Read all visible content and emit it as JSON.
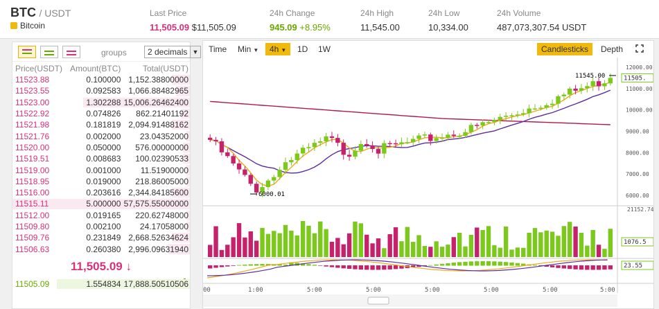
{
  "ticker": {
    "base": "BTC",
    "quote": "/ USDT",
    "coin_name": "Bitcoin",
    "last_price_label": "Last Price",
    "last_price": "11,505.09",
    "last_price_usd": "$11,505.09",
    "change_label": "24h Change",
    "change_value": "945.09",
    "change_pct": "+8.95%",
    "high_label": "24h High",
    "high_value": "11,545.00",
    "low_label": "24h Low",
    "low_value": "10,334.00",
    "volume_label": "24h Volume",
    "volume_value": "487,073,307.54 USDT"
  },
  "orderbook": {
    "groups_label": "groups",
    "decimals": "2 decimals",
    "headers": [
      "Price(USDT)",
      "Amount(BTC)",
      "Total(USDT)"
    ],
    "asks": [
      {
        "price": "11523.88",
        "amount": "0.100000",
        "total": "1,152.38800000",
        "depth": 0.1
      },
      {
        "price": "11523.55",
        "amount": "0.092583",
        "total": "1,066.88482965",
        "depth": 0.08
      },
      {
        "price": "11523.00",
        "amount": "1.302288",
        "total": "15,006.26462400",
        "depth": 0.6
      },
      {
        "price": "11522.92",
        "amount": "0.074826",
        "total": "862.21401192",
        "depth": 0.05
      },
      {
        "price": "11521.98",
        "amount": "0.181819",
        "total": "2,094.91488162",
        "depth": 0.1
      },
      {
        "price": "11521.76",
        "amount": "0.002000",
        "total": "23.04352000",
        "depth": 0.02
      },
      {
        "price": "11520.00",
        "amount": "0.050000",
        "total": "576.00000000",
        "depth": 0.04
      },
      {
        "price": "11519.51",
        "amount": "0.008683",
        "total": "100.02390533",
        "depth": 0.04
      },
      {
        "price": "11519.00",
        "amount": "0.001000",
        "total": "11.51900000",
        "depth": 0.02
      },
      {
        "price": "11518.95",
        "amount": "0.019000",
        "total": "218.86005000",
        "depth": 0.02
      },
      {
        "price": "11516.00",
        "amount": "0.203616",
        "total": "2,344.84185600",
        "depth": 0.1
      },
      {
        "price": "11515.11",
        "amount": "5.000000",
        "total": "57,575.55000000",
        "depth": 1.0
      },
      {
        "price": "11512.00",
        "amount": "0.019165",
        "total": "220.62748000",
        "depth": 0.02
      },
      {
        "price": "11509.80",
        "amount": "0.002100",
        "total": "24.17058000",
        "depth": 0.02
      },
      {
        "price": "11509.76",
        "amount": "0.231849",
        "total": "2,668.52634624",
        "depth": 0.1
      },
      {
        "price": "11506.63",
        "amount": "0.260380",
        "total": "2,996.09631940",
        "depth": 0.12
      }
    ],
    "last_price": "11,505.09 ↓",
    "bids": [
      {
        "price": "11505.09",
        "amount": "1.554834",
        "total": "17,888.50510506",
        "depth": 0.75
      }
    ]
  },
  "chart_toolbar": {
    "time": "Time",
    "min": "Min",
    "h4": "4h",
    "d1": "1D",
    "w1": "1W",
    "candlesticks": "Candlesticks",
    "depth": "Depth"
  },
  "chart_data": {
    "type": "candlestick",
    "price_ticks": [
      "12000.00",
      "11000.00",
      "10000.00",
      "9000.00",
      "8000.00",
      "7000.00",
      "6000.00"
    ],
    "price_range": [
      5900,
      12200
    ],
    "high_annotation": "11545.00",
    "low_annotation": "6000.01",
    "current_price_label": "11505.",
    "volume_top_label": "21152.74",
    "volume_label": "1076.5",
    "macd_label": "23.55",
    "x_labels": [
      "00",
      "1:00",
      "5:00",
      "5:00",
      "5:00",
      "5:00",
      "5:00",
      "5:00",
      "5:00"
    ],
    "colors": {
      "up": "#7cc81d",
      "down": "#c6226c",
      "ma_fast": "#f0a818",
      "ma_mid": "#5b2ca0",
      "ma_slow": "#b0174e"
    }
  }
}
